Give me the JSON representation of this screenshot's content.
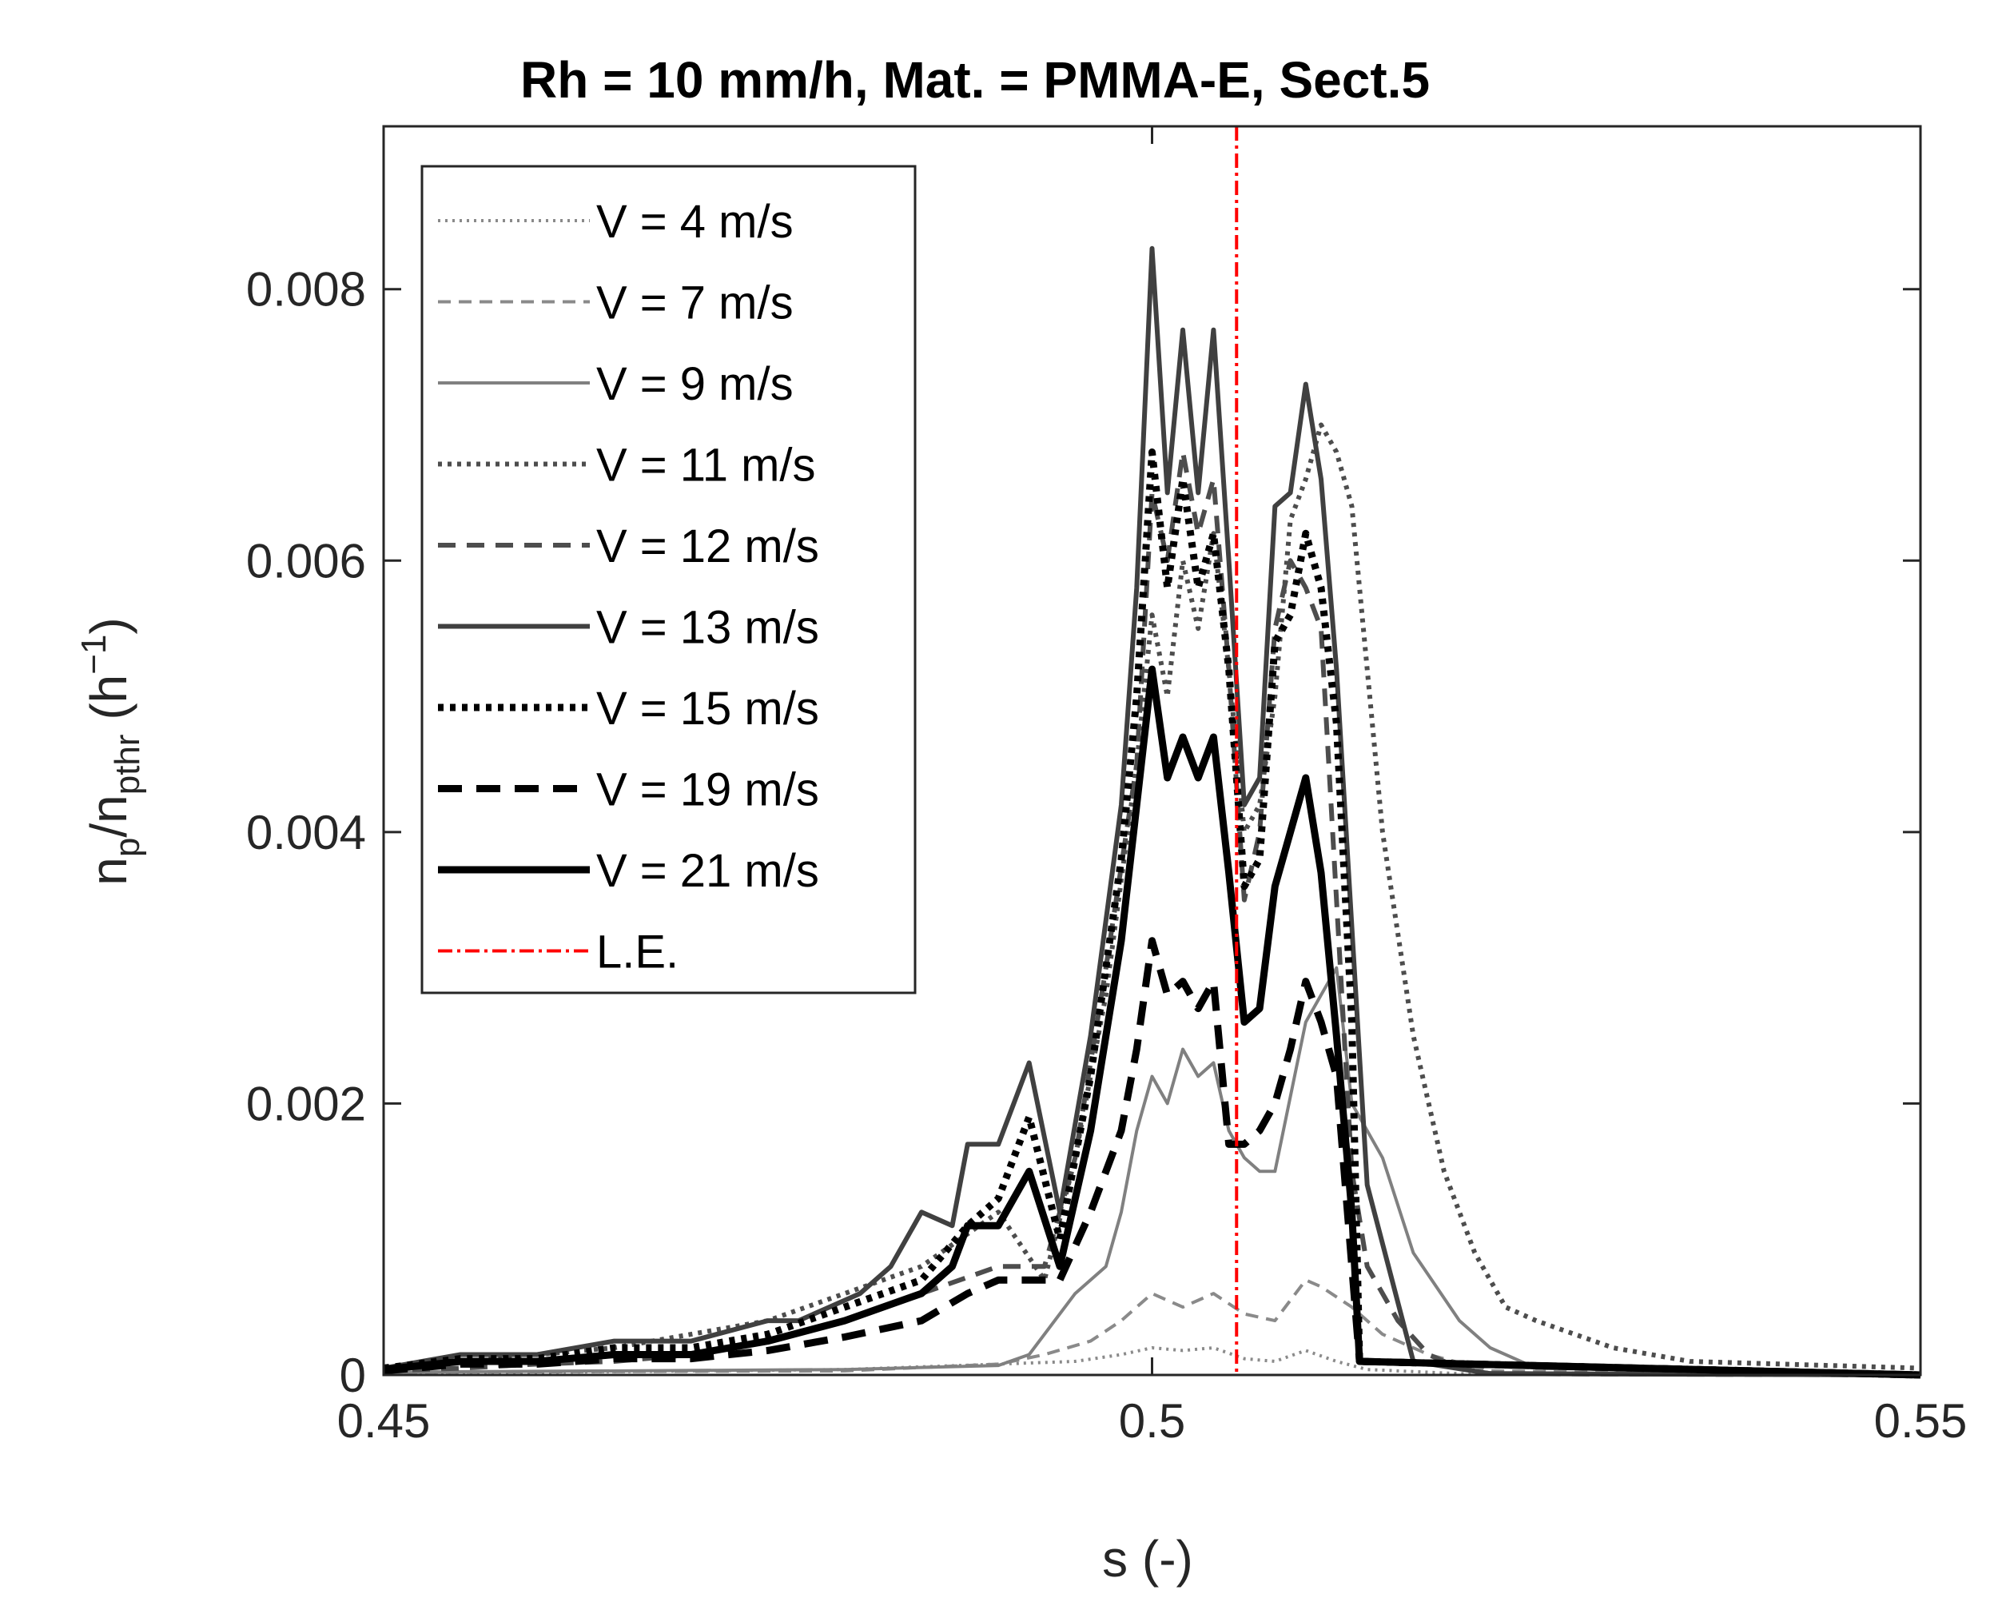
{
  "chart_data": {
    "type": "line",
    "title": "Rh = 10 mm/h, Mat. = PMMA-E, Sect.5",
    "xlabel": "s (-)",
    "ylabel": {
      "base": "n",
      "sub1": "p",
      "slash": "/n",
      "sub2": "pthr",
      "unit_open": " (h",
      "sup": "−1",
      "unit_close": ")"
    },
    "xlim": [
      0.45,
      0.55
    ],
    "ylim": [
      0,
      0.0092
    ],
    "xticks": [
      0.45,
      0.5,
      0.55
    ],
    "xtick_labels": [
      "0.45",
      "0.5",
      "0.55"
    ],
    "yticks": [
      0,
      0.002,
      0.004,
      0.006,
      0.008
    ],
    "ytick_labels": [
      "0",
      "0.002",
      "0.004",
      "0.006",
      "0.008"
    ],
    "grid": false,
    "legend_position": "top-left",
    "leading_edge": {
      "name": "L.E.",
      "x": 0.5055,
      "color": "#ff0000"
    },
    "series": [
      {
        "name": "V = 4 m/s",
        "color": "#8a8a8a",
        "style": "dotted",
        "weight": "thin",
        "x": [
          0.45,
          0.47,
          0.48,
          0.49,
          0.495,
          0.498,
          0.5,
          0.502,
          0.504,
          0.506,
          0.508,
          0.51,
          0.512,
          0.514,
          0.52,
          0.55
        ],
        "y": [
          1e-05,
          3e-05,
          4e-05,
          8e-05,
          0.0001,
          0.00015,
          0.0002,
          0.00018,
          0.0002,
          0.00012,
          0.0001,
          0.00018,
          0.0001,
          4e-05,
          1e-05,
          0
        ]
      },
      {
        "name": "V = 7 m/s",
        "color": "#8a8a8a",
        "style": "dashed",
        "weight": "thin",
        "x": [
          0.45,
          0.48,
          0.49,
          0.493,
          0.496,
          0.498,
          0.5,
          0.502,
          0.504,
          0.506,
          0.508,
          0.51,
          0.511,
          0.513,
          0.515,
          0.518,
          0.522,
          0.55
        ],
        "y": [
          2e-05,
          3e-05,
          8e-05,
          0.00015,
          0.00025,
          0.0004,
          0.0006,
          0.0005,
          0.0006,
          0.00045,
          0.0004,
          0.0007,
          0.00065,
          0.0005,
          0.0003,
          0.00015,
          3e-05,
          0
        ]
      },
      {
        "name": "V = 9 m/s",
        "color": "#808080",
        "style": "solid",
        "weight": "thin",
        "x": [
          0.45,
          0.48,
          0.49,
          0.492,
          0.495,
          0.497,
          0.498,
          0.499,
          0.5,
          0.501,
          0.502,
          0.503,
          0.504,
          0.505,
          0.506,
          0.507,
          0.508,
          0.51,
          0.511,
          0.512,
          0.513,
          0.515,
          0.517,
          0.52,
          0.522,
          0.525,
          0.55
        ],
        "y": [
          2e-05,
          4e-05,
          7e-05,
          0.00015,
          0.0006,
          0.0008,
          0.0012,
          0.0018,
          0.0022,
          0.002,
          0.0024,
          0.0022,
          0.0023,
          0.0018,
          0.0016,
          0.0015,
          0.0015,
          0.0026,
          0.0028,
          0.003,
          0.002,
          0.0016,
          0.0009,
          0.0004,
          0.0002,
          5e-05,
          0
        ]
      },
      {
        "name": "V = 11 m/s",
        "color": "#4d4d4d",
        "style": "dotted",
        "weight": "medium",
        "x": [
          0.45,
          0.455,
          0.46,
          0.465,
          0.47,
          0.475,
          0.48,
          0.485,
          0.49,
          0.493,
          0.495,
          0.497,
          0.499,
          0.5,
          0.501,
          0.502,
          0.503,
          0.504,
          0.505,
          0.506,
          0.507,
          0.508,
          0.509,
          0.51,
          0.511,
          0.512,
          0.513,
          0.514,
          0.515,
          0.517,
          0.519,
          0.521,
          0.523,
          0.525,
          0.53,
          0.535,
          0.55
        ],
        "y": [
          5e-05,
          0.0001,
          0.00015,
          0.0002,
          0.0003,
          0.0004,
          0.0006,
          0.0008,
          0.0012,
          0.0007,
          0.0016,
          0.0028,
          0.0045,
          0.0056,
          0.005,
          0.006,
          0.0055,
          0.0062,
          0.0052,
          0.004,
          0.0042,
          0.005,
          0.0063,
          0.0066,
          0.007,
          0.0068,
          0.0064,
          0.0052,
          0.004,
          0.0025,
          0.0015,
          0.0009,
          0.0005,
          0.0004,
          0.0002,
          0.0001,
          5e-05
        ]
      },
      {
        "name": "V = 12 m/s",
        "color": "#4d4d4d",
        "style": "dashed",
        "weight": "medium",
        "x": [
          0.45,
          0.455,
          0.46,
          0.465,
          0.47,
          0.475,
          0.48,
          0.485,
          0.49,
          0.493,
          0.495,
          0.497,
          0.499,
          0.5,
          0.501,
          0.502,
          0.503,
          0.504,
          0.505,
          0.506,
          0.507,
          0.508,
          0.509,
          0.51,
          0.511,
          0.512,
          0.513,
          0.514,
          0.516,
          0.518,
          0.52,
          0.522,
          0.55
        ],
        "y": [
          3e-05,
          5e-05,
          8e-05,
          0.0001,
          0.00015,
          0.00025,
          0.0004,
          0.0006,
          0.0008,
          0.0008,
          0.0016,
          0.003,
          0.0045,
          0.0065,
          0.006,
          0.0068,
          0.0062,
          0.0066,
          0.0052,
          0.0035,
          0.004,
          0.0055,
          0.006,
          0.0058,
          0.0055,
          0.0035,
          0.0015,
          0.0008,
          0.0004,
          0.00015,
          5e-05,
          1e-05,
          0
        ]
      },
      {
        "name": "V = 13 m/s",
        "color": "#404040",
        "style": "solid",
        "weight": "medium",
        "x": [
          0.45,
          0.455,
          0.46,
          0.465,
          0.47,
          0.475,
          0.477,
          0.479,
          0.481,
          0.483,
          0.485,
          0.487,
          0.488,
          0.49,
          0.492,
          0.494,
          0.496,
          0.498,
          0.499,
          0.5,
          0.501,
          0.502,
          0.503,
          0.504,
          0.505,
          0.506,
          0.507,
          0.508,
          0.509,
          0.51,
          0.511,
          0.512,
          0.513,
          0.514,
          0.517,
          0.522,
          0.55
        ],
        "y": [
          5e-05,
          0.00015,
          0.00015,
          0.00025,
          0.00025,
          0.0004,
          0.0004,
          0.0005,
          0.0006,
          0.0008,
          0.0012,
          0.0011,
          0.0017,
          0.0017,
          0.0023,
          0.0012,
          0.0025,
          0.0042,
          0.0058,
          0.0083,
          0.0065,
          0.0077,
          0.0065,
          0.0077,
          0.006,
          0.0042,
          0.0044,
          0.0064,
          0.0065,
          0.0073,
          0.0066,
          0.0052,
          0.0033,
          0.0014,
          0.0001,
          1e-05,
          0
        ]
      },
      {
        "name": "V = 15 m/s",
        "color": "#000000",
        "style": "dotted",
        "weight": "thick",
        "x": [
          0.45,
          0.455,
          0.46,
          0.465,
          0.47,
          0.475,
          0.48,
          0.485,
          0.488,
          0.49,
          0.492,
          0.494,
          0.496,
          0.498,
          0.499,
          0.5,
          0.501,
          0.502,
          0.503,
          0.504,
          0.505,
          0.506,
          0.507,
          0.508,
          0.509,
          0.51,
          0.511,
          0.512,
          0.513,
          0.5135,
          0.55
        ],
        "y": [
          5e-05,
          0.00012,
          0.00012,
          0.0002,
          0.0002,
          0.0003,
          0.0005,
          0.0007,
          0.0011,
          0.0013,
          0.0019,
          0.001,
          0.0022,
          0.0038,
          0.005,
          0.0068,
          0.0058,
          0.0066,
          0.0058,
          0.0062,
          0.0052,
          0.0036,
          0.0038,
          0.0054,
          0.0056,
          0.0062,
          0.0058,
          0.0048,
          0.0026,
          0.0001,
          0
        ]
      },
      {
        "name": "V = 19 m/s",
        "color": "#000000",
        "style": "dashed",
        "weight": "thick",
        "x": [
          0.45,
          0.455,
          0.46,
          0.465,
          0.47,
          0.475,
          0.48,
          0.485,
          0.488,
          0.49,
          0.492,
          0.494,
          0.496,
          0.498,
          0.499,
          0.5,
          0.501,
          0.502,
          0.503,
          0.504,
          0.505,
          0.506,
          0.507,
          0.508,
          0.509,
          0.51,
          0.511,
          0.512,
          0.513,
          0.5135,
          0.55
        ],
        "y": [
          3e-05,
          8e-05,
          8e-05,
          0.00012,
          0.00012,
          0.00018,
          0.00028,
          0.0004,
          0.0006,
          0.0007,
          0.0007,
          0.0007,
          0.0012,
          0.0018,
          0.0024,
          0.0032,
          0.0028,
          0.0029,
          0.0027,
          0.0029,
          0.0017,
          0.0017,
          0.0018,
          0.002,
          0.0024,
          0.0029,
          0.0026,
          0.0022,
          0.0008,
          0.0001,
          0
        ]
      },
      {
        "name": "V = 21 m/s",
        "color": "#000000",
        "style": "solid",
        "weight": "thick",
        "x": [
          0.45,
          0.455,
          0.46,
          0.465,
          0.47,
          0.475,
          0.48,
          0.485,
          0.487,
          0.488,
          0.49,
          0.492,
          0.494,
          0.496,
          0.498,
          0.499,
          0.5,
          0.501,
          0.502,
          0.503,
          0.504,
          0.505,
          0.506,
          0.507,
          0.508,
          0.509,
          0.51,
          0.511,
          0.512,
          0.513,
          0.5135,
          0.55
        ],
        "y": [
          4e-05,
          0.0001,
          0.0001,
          0.00015,
          0.00015,
          0.00025,
          0.0004,
          0.0006,
          0.0008,
          0.0011,
          0.0011,
          0.0015,
          0.0008,
          0.0018,
          0.0032,
          0.0042,
          0.0052,
          0.0044,
          0.0047,
          0.0044,
          0.0047,
          0.0037,
          0.0026,
          0.0027,
          0.0036,
          0.004,
          0.0044,
          0.0037,
          0.0025,
          0.0012,
          0.0001,
          0
        ]
      }
    ]
  }
}
